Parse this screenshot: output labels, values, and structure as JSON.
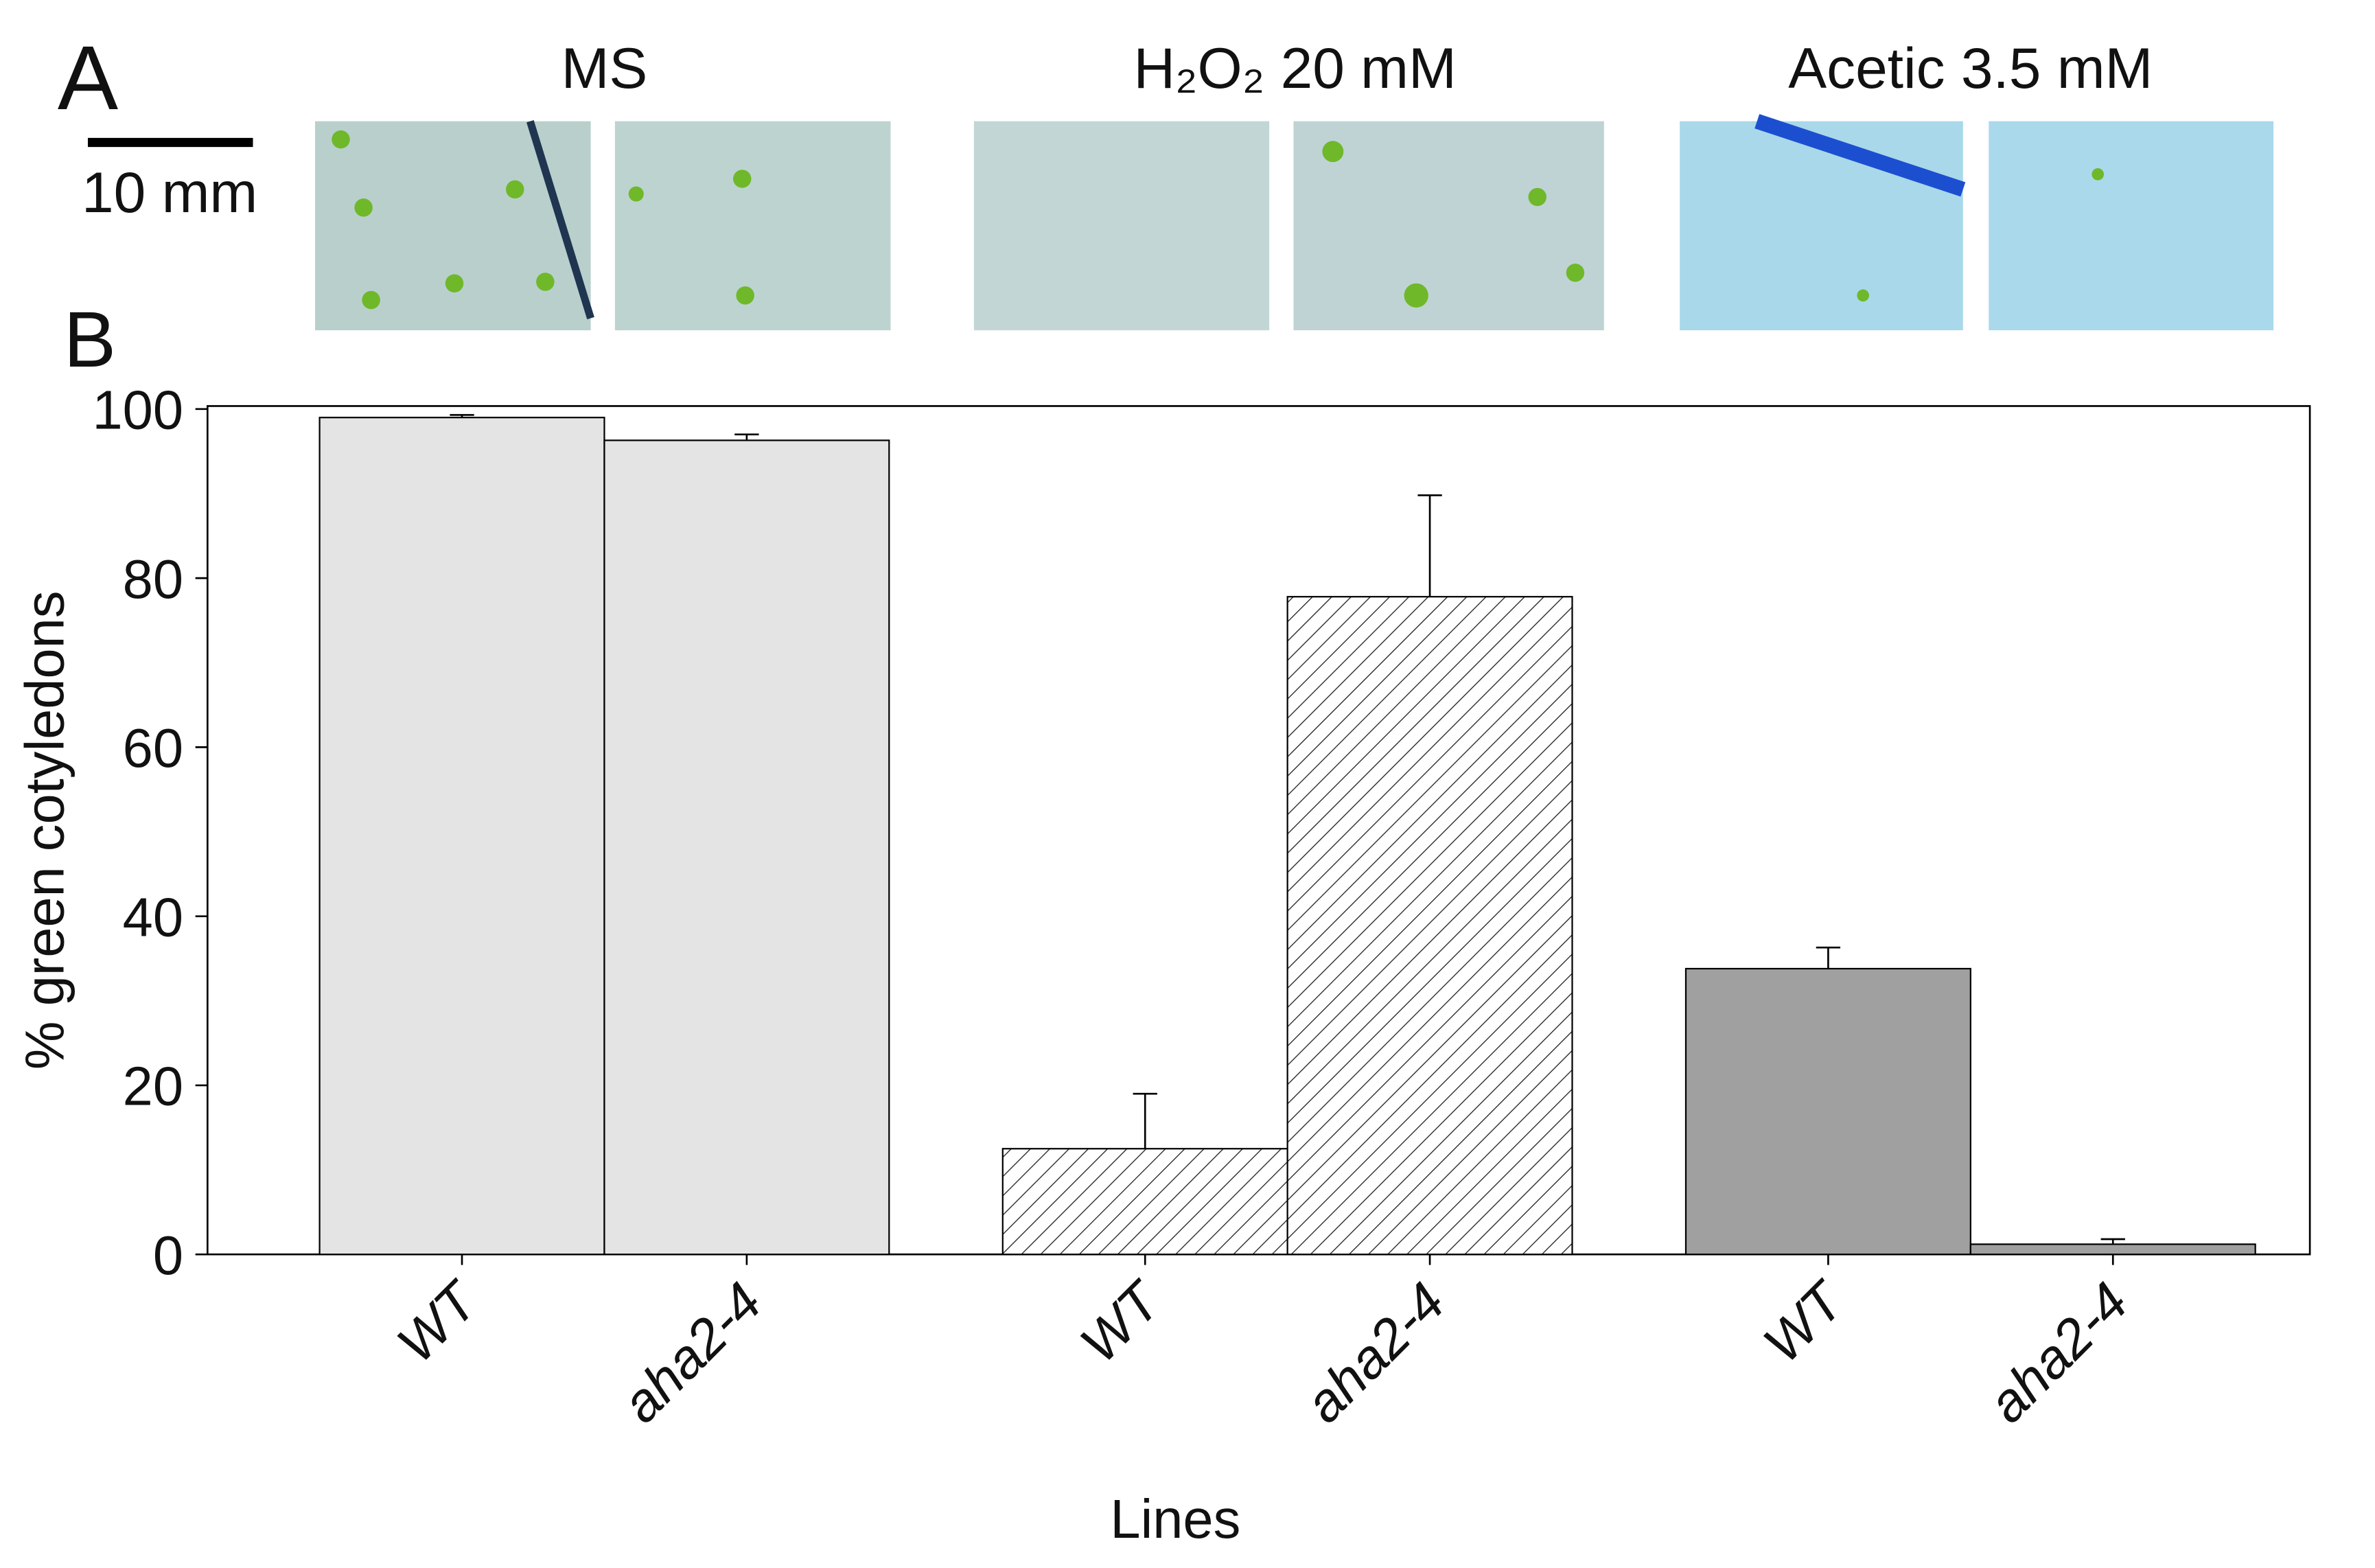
{
  "panel_labels": [
    "A",
    "B"
  ],
  "scale_bar": "10 mm",
  "chart_data": {
    "type": "bar",
    "x_label": "Lines",
    "y_label": "% green cotyledons",
    "categories": [
      "WT",
      "aha2-4",
      "WT",
      "aha2-4",
      "WT",
      "aha2-4"
    ],
    "series": [
      {
        "name": "MS",
        "color": "#e4e4e4",
        "hatch": false,
        "values": [
          99,
          96.3,
          null,
          null,
          null,
          null
        ],
        "errors": [
          0.3,
          0.7,
          null,
          null,
          null,
          null
        ]
      },
      {
        "name": "H₂O₂  20 mM",
        "color": "#ffffff",
        "hatch": true,
        "values": [
          null,
          null,
          12.5,
          77.8,
          null,
          null
        ],
        "errors": [
          null,
          null,
          6.5,
          12,
          null,
          null
        ]
      },
      {
        "name": "Acetic 3.5 mM",
        "color": "#a0a0a0",
        "hatch": false,
        "values": [
          null,
          null,
          null,
          null,
          33.8,
          1.2
        ],
        "errors": [
          null,
          null,
          null,
          null,
          2.5,
          0.6
        ]
      }
    ],
    "ylim": [
      0,
      100
    ],
    "yticks": [
      0,
      20,
      40,
      60,
      80,
      100
    ]
  }
}
